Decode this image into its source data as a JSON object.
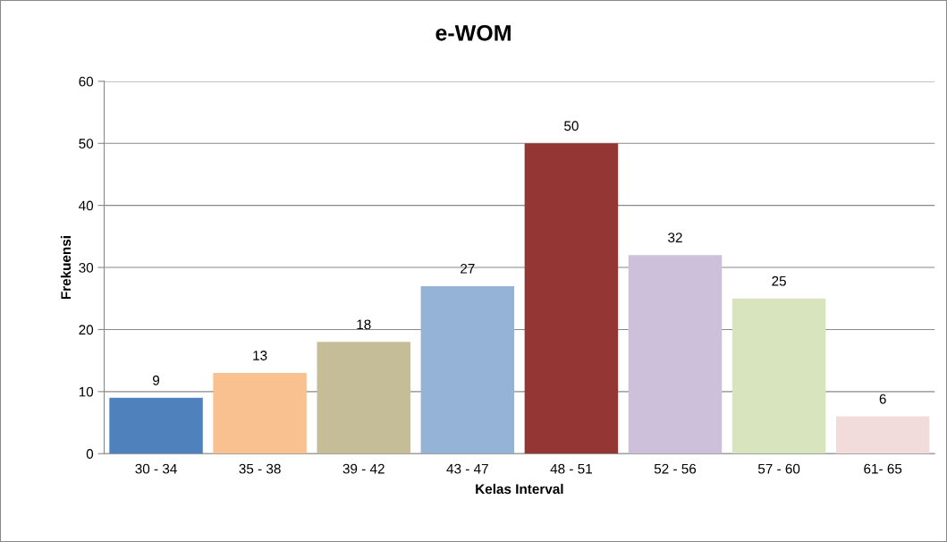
{
  "chart_data": {
    "type": "bar",
    "title": "e-WOM",
    "xlabel": "Kelas Interval",
    "ylabel": "Frekuensi",
    "categories": [
      "30 - 34",
      "35 - 38",
      "39 - 42",
      "43 - 47",
      "48 - 51",
      "52 - 56",
      "57 - 60",
      "61- 65"
    ],
    "values": [
      9,
      13,
      18,
      27,
      50,
      32,
      25,
      6
    ],
    "colors": [
      "#4f81bd",
      "#f9c090",
      "#c4bd97",
      "#95b3d7",
      "#943634",
      "#ccc0da",
      "#d7e4bd",
      "#f2dcdb"
    ],
    "ylim": [
      0,
      60
    ],
    "yticks": [
      0,
      10,
      20,
      30,
      40,
      50,
      60
    ],
    "grid": "y",
    "data_labels": true,
    "legend": false
  }
}
